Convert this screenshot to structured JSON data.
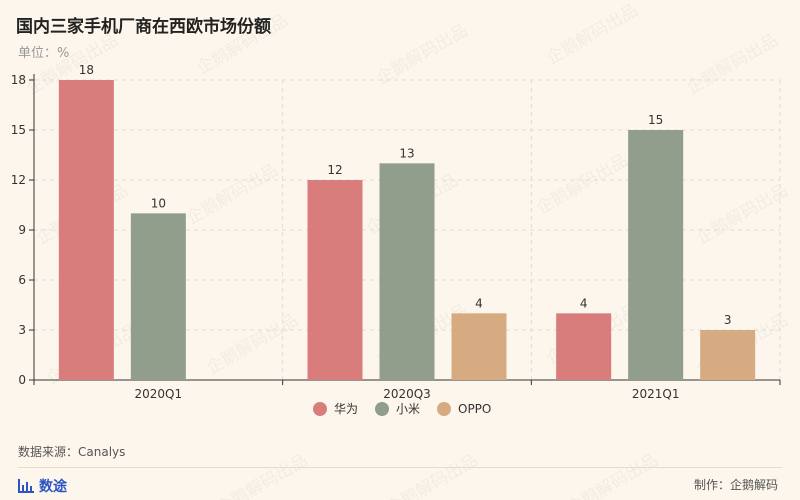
{
  "header": {
    "title": "国内三家手机厂商在西欧市场份额",
    "unit": "单位：%"
  },
  "footer": {
    "source": "数据来源：Canalys",
    "brand": "数途",
    "maker": "制作：企鹅解码"
  },
  "watermark": "企鹅解码出品",
  "colors": {
    "华为": "#d87c7c",
    "小米": "#919e8b",
    "OPPO": "#d7ab82",
    "axis": "#333333",
    "grid": "#dddddd",
    "background": "#fdf6ec"
  },
  "chart_data": {
    "type": "bar",
    "title": "国内三家手机厂商在西欧市场份额",
    "ylabel": "%",
    "xlabel": "",
    "categories": [
      "2020Q1",
      "2020Q3",
      "2021Q1"
    ],
    "series": [
      {
        "name": "华为",
        "values": [
          18,
          12,
          4
        ]
      },
      {
        "name": "小米",
        "values": [
          10,
          13,
          15
        ]
      },
      {
        "name": "OPPO",
        "values": [
          null,
          4,
          3
        ]
      }
    ],
    "ylim": [
      0,
      18
    ],
    "yticks": [
      0,
      3,
      6,
      9,
      12,
      15,
      18
    ],
    "grid": true,
    "legend": "bottom-center",
    "data_labels": true
  }
}
